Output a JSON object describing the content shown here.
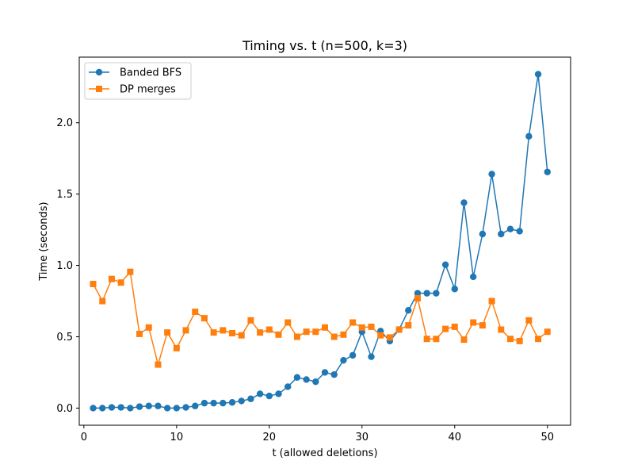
{
  "chart_data": {
    "type": "line",
    "title": "Timing vs. t (n=500, k=3)",
    "xlabel": "t (allowed deletions)",
    "ylabel": "Time (seconds)",
    "xlim": [
      -0.5,
      52.5
    ],
    "ylim": [
      -0.12,
      2.46
    ],
    "xticks": [
      0,
      10,
      20,
      30,
      40,
      50
    ],
    "xtick_labels": [
      "0",
      "10",
      "20",
      "30",
      "40",
      "50"
    ],
    "yticks": [
      0.0,
      0.5,
      1.0,
      1.5,
      2.0
    ],
    "ytick_labels": [
      "0.0",
      "0.5",
      "1.0",
      "1.5",
      "2.0"
    ],
    "grid": false,
    "legend_position": "top-left",
    "x": [
      1,
      2,
      3,
      4,
      5,
      6,
      7,
      8,
      9,
      10,
      11,
      12,
      13,
      14,
      15,
      16,
      17,
      18,
      19,
      20,
      21,
      22,
      23,
      24,
      25,
      26,
      27,
      28,
      29,
      30,
      31,
      32,
      33,
      34,
      35,
      36,
      37,
      38,
      39,
      40,
      41,
      42,
      43,
      44,
      45,
      46,
      47,
      48,
      49,
      50
    ],
    "series": [
      {
        "name": "Banded BFS",
        "color": "#1f77b4",
        "marker": "circle",
        "values": [
          0.0,
          0.0,
          0.005,
          0.005,
          0.0,
          0.01,
          0.015,
          0.015,
          0.0,
          0.0,
          0.005,
          0.015,
          0.035,
          0.035,
          0.035,
          0.04,
          0.05,
          0.065,
          0.1,
          0.085,
          0.1,
          0.15,
          0.215,
          0.2,
          0.185,
          0.25,
          0.235,
          0.335,
          0.37,
          0.535,
          0.36,
          0.54,
          0.47,
          0.55,
          0.685,
          0.805,
          0.805,
          0.805,
          1.005,
          0.835,
          1.44,
          0.92,
          1.22,
          1.64,
          1.22,
          1.255,
          1.24,
          1.905,
          2.34,
          1.655
        ]
      },
      {
        "name": "DP merges",
        "color": "#ff7f0e",
        "marker": "square",
        "values": [
          0.87,
          0.75,
          0.905,
          0.88,
          0.955,
          0.52,
          0.565,
          0.305,
          0.53,
          0.42,
          0.545,
          0.675,
          0.63,
          0.53,
          0.545,
          0.525,
          0.51,
          0.615,
          0.53,
          0.55,
          0.515,
          0.6,
          0.5,
          0.535,
          0.535,
          0.565,
          0.5,
          0.515,
          0.6,
          0.565,
          0.57,
          0.51,
          0.495,
          0.55,
          0.58,
          0.77,
          0.485,
          0.485,
          0.555,
          0.57,
          0.48,
          0.6,
          0.58,
          0.75,
          0.55,
          0.485,
          0.47,
          0.615,
          0.485,
          0.535
        ]
      }
    ]
  }
}
